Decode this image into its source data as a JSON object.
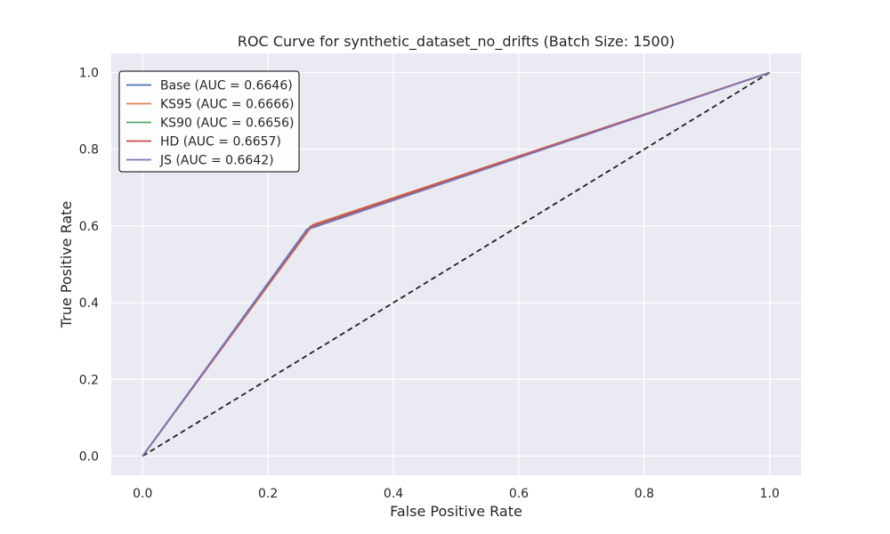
{
  "chart_data": {
    "type": "line",
    "title": "ROC Curve for synthetic_dataset_no_drifts (Batch Size: 1500)",
    "xlabel": "False Positive Rate",
    "ylabel": "True Positive Rate",
    "xlim": [
      -0.05,
      1.05
    ],
    "ylim": [
      -0.05,
      1.05
    ],
    "xticks": [
      0.0,
      0.2,
      0.4,
      0.6,
      0.8,
      1.0
    ],
    "yticks": [
      0.0,
      0.2,
      0.4,
      0.6,
      0.8,
      1.0
    ],
    "xtick_labels": [
      "0.0",
      "0.2",
      "0.4",
      "0.6",
      "0.8",
      "1.0"
    ],
    "ytick_labels": [
      "0.0",
      "0.2",
      "0.4",
      "0.6",
      "0.8",
      "1.0"
    ],
    "grid": true,
    "legend_position": "top-left",
    "series": [
      {
        "name": "Base (AUC = 0.6646)",
        "color": "#4c72b0",
        "x": [
          0.0,
          0.262,
          1.0
        ],
        "y": [
          0.0,
          0.591,
          1.0
        ]
      },
      {
        "name": "KS95 (AUC = 0.6666)",
        "color": "#dd8452",
        "x": [
          0.0,
          0.272,
          1.0
        ],
        "y": [
          0.0,
          0.604,
          1.0
        ]
      },
      {
        "name": "KS90 (AUC = 0.6656)",
        "color": "#55a868",
        "x": [
          0.0,
          0.267,
          1.0
        ],
        "y": [
          0.0,
          0.598,
          1.0
        ]
      },
      {
        "name": "HD (AUC = 0.6657)",
        "color": "#c44e52",
        "x": [
          0.0,
          0.268,
          1.0
        ],
        "y": [
          0.0,
          0.599,
          1.0
        ]
      },
      {
        "name": "JS (AUC = 0.6642)",
        "color": "#8172b3",
        "x": [
          0.0,
          0.263,
          1.0
        ],
        "y": [
          0.0,
          0.591,
          1.0
        ]
      }
    ],
    "reference_line": {
      "color": "#222222",
      "style": "dashed",
      "x": [
        0.0,
        1.0
      ],
      "y": [
        0.0,
        1.0
      ]
    }
  },
  "colors": {
    "plot_background": "#eaeaf2",
    "grid": "#ffffff",
    "legend_border": "#000000"
  }
}
